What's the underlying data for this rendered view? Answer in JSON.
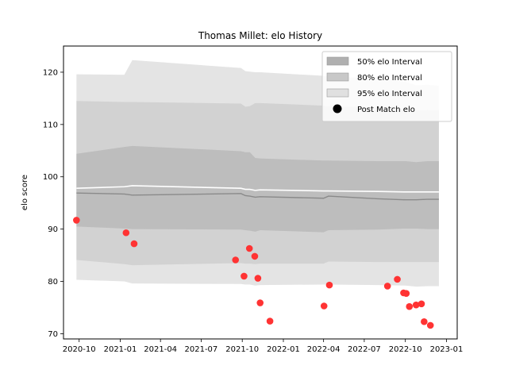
{
  "chart_data": {
    "type": "area",
    "title": "Thomas Millet: elo History",
    "xlabel": "",
    "ylabel": "elo score",
    "x_ticks": [
      "2020-10",
      "2021-01",
      "2021-04",
      "2021-07",
      "2021-10",
      "2022-01",
      "2022-04",
      "2022-07",
      "2022-10",
      "2023-01"
    ],
    "y_ticks": [
      70,
      80,
      90,
      100,
      110,
      120
    ],
    "xlim": [
      "2020-08-27",
      "2023-01-25"
    ],
    "ylim": [
      69,
      125
    ],
    "grid": false,
    "legend_position": "top-right",
    "legend": [
      {
        "label": "50% elo Interval",
        "color": "#b0b0b0",
        "kind": "patch"
      },
      {
        "label": "80% elo Interval",
        "color": "#c8c8c8",
        "kind": "patch"
      },
      {
        "label": "95% elo Interval",
        "color": "#e0e0e0",
        "kind": "patch"
      },
      {
        "label": "Post Match elo",
        "color": "#000000",
        "kind": "marker"
      }
    ],
    "bands": {
      "x": [
        "2020-09-25",
        "2021-01-10",
        "2021-01-28",
        "2021-09-28",
        "2021-10-08",
        "2021-10-18",
        "2021-10-30",
        "2021-11-10",
        "2022-04-01",
        "2022-04-12",
        "2022-08-01",
        "2022-10-01",
        "2022-10-25",
        "2022-11-20",
        "2022-12-15"
      ],
      "p95_low": [
        80.3,
        80.0,
        79.6,
        79.5,
        79.4,
        79.4,
        79.2,
        79.3,
        79.4,
        79.4,
        79.3,
        79.2,
        79.0,
        79.1,
        79.1
      ],
      "p95_high": [
        119.6,
        119.5,
        122.3,
        120.8,
        120.2,
        120.1,
        120.0,
        120.0,
        119.3,
        119.2,
        118.8,
        118.2,
        117.5,
        117.6,
        117.4
      ],
      "p80_low": [
        84.1,
        83.3,
        83.1,
        83.5,
        83.4,
        83.4,
        83.3,
        83.4,
        83.4,
        83.8,
        83.7,
        83.7,
        83.7,
        83.7,
        83.7
      ],
      "p80_high": [
        114.5,
        114.3,
        114.3,
        114.0,
        113.4,
        113.5,
        114.1,
        114.1,
        113.6,
        113.5,
        113.2,
        112.9,
        112.7,
        112.8,
        112.8
      ],
      "p50_low": [
        90.5,
        90.1,
        90.0,
        89.9,
        89.8,
        89.7,
        89.5,
        89.8,
        89.4,
        89.8,
        89.9,
        90.1,
        90.1,
        90.0,
        90.0
      ],
      "p50_high": [
        104.4,
        105.7,
        105.9,
        104.9,
        104.7,
        104.7,
        103.6,
        103.5,
        103.1,
        103.1,
        103.0,
        103.0,
        102.8,
        103.0,
        103.0
      ],
      "upper_line": [
        97.8,
        98.1,
        98.3,
        97.8,
        97.6,
        97.6,
        97.4,
        97.5,
        97.3,
        97.3,
        97.2,
        97.1,
        97.1,
        97.1,
        97.1
      ],
      "median_line": [
        96.9,
        96.7,
        96.5,
        96.8,
        96.4,
        96.3,
        96.1,
        96.2,
        95.9,
        96.3,
        95.8,
        95.6,
        95.6,
        95.7,
        95.7
      ]
    },
    "series": [
      {
        "name": "Post Match elo",
        "color": "#ff3333",
        "points": [
          {
            "x": "2020-09-25",
            "y": 91.7
          },
          {
            "x": "2021-01-14",
            "y": 89.3
          },
          {
            "x": "2021-02-01",
            "y": 87.2
          },
          {
            "x": "2021-09-16",
            "y": 84.1
          },
          {
            "x": "2021-10-05",
            "y": 81.0
          },
          {
            "x": "2021-10-17",
            "y": 86.3
          },
          {
            "x": "2021-10-29",
            "y": 84.8
          },
          {
            "x": "2021-11-05",
            "y": 80.6
          },
          {
            "x": "2021-11-10",
            "y": 75.9
          },
          {
            "x": "2021-12-02",
            "y": 72.4
          },
          {
            "x": "2022-04-02",
            "y": 75.3
          },
          {
            "x": "2022-04-14",
            "y": 79.3
          },
          {
            "x": "2022-08-22",
            "y": 79.1
          },
          {
            "x": "2022-09-13",
            "y": 80.4
          },
          {
            "x": "2022-09-27",
            "y": 77.8
          },
          {
            "x": "2022-10-03",
            "y": 77.7
          },
          {
            "x": "2022-10-10",
            "y": 75.2
          },
          {
            "x": "2022-10-25",
            "y": 75.5
          },
          {
            "x": "2022-11-06",
            "y": 75.7
          },
          {
            "x": "2022-11-12",
            "y": 72.3
          },
          {
            "x": "2022-11-26",
            "y": 71.6
          }
        ]
      }
    ]
  }
}
